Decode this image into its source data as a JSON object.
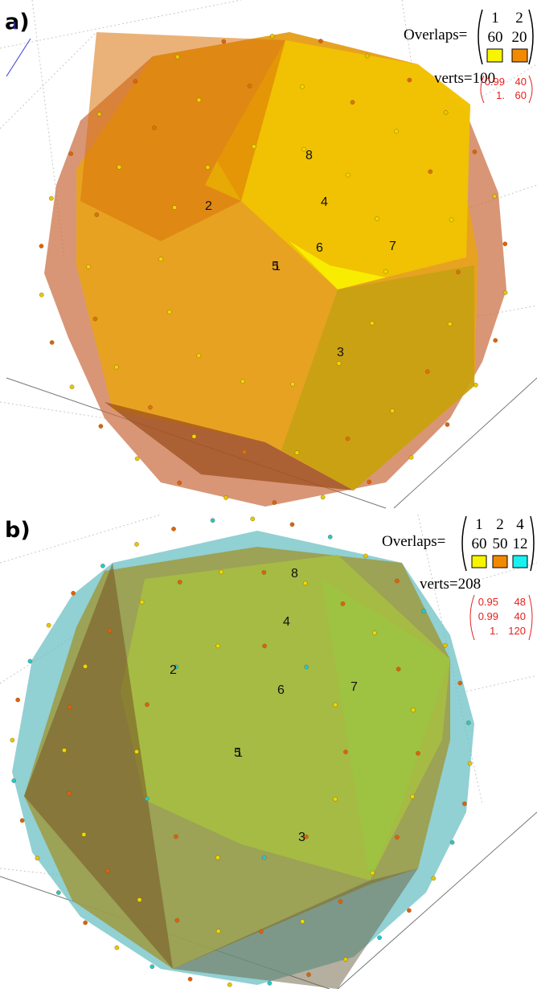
{
  "panels": [
    {
      "label": "a)",
      "axis_label": "1",
      "overlaps_label": "Overlaps=",
      "overlap_table": {
        "columns": [
          "1",
          "2"
        ],
        "counts": [
          "60",
          "20"
        ],
        "colors": [
          "#f7f500",
          "#f28a00"
        ]
      },
      "verts": "verts=100",
      "red_matrix": [
        [
          "0.99",
          "40"
        ],
        [
          "1.",
          "60"
        ]
      ],
      "face_labels": [
        "8",
        "4",
        "2",
        "6",
        "7",
        "5",
        "1",
        "3"
      ]
    },
    {
      "label": "b)",
      "overlaps_label": "Overlaps=",
      "overlap_table": {
        "columns": [
          "1",
          "2",
          "4"
        ],
        "counts": [
          "60",
          "50",
          "12"
        ],
        "colors": [
          "#f7f500",
          "#f28a00",
          "#19f0f0"
        ]
      },
      "verts": "verts=208",
      "red_matrix": [
        [
          "0.95",
          "48"
        ],
        [
          "0.99",
          "40"
        ],
        [
          "1.",
          "120"
        ]
      ],
      "face_labels": [
        "8",
        "4",
        "2",
        "6",
        "7",
        "5",
        "1",
        "3"
      ]
    }
  ]
}
